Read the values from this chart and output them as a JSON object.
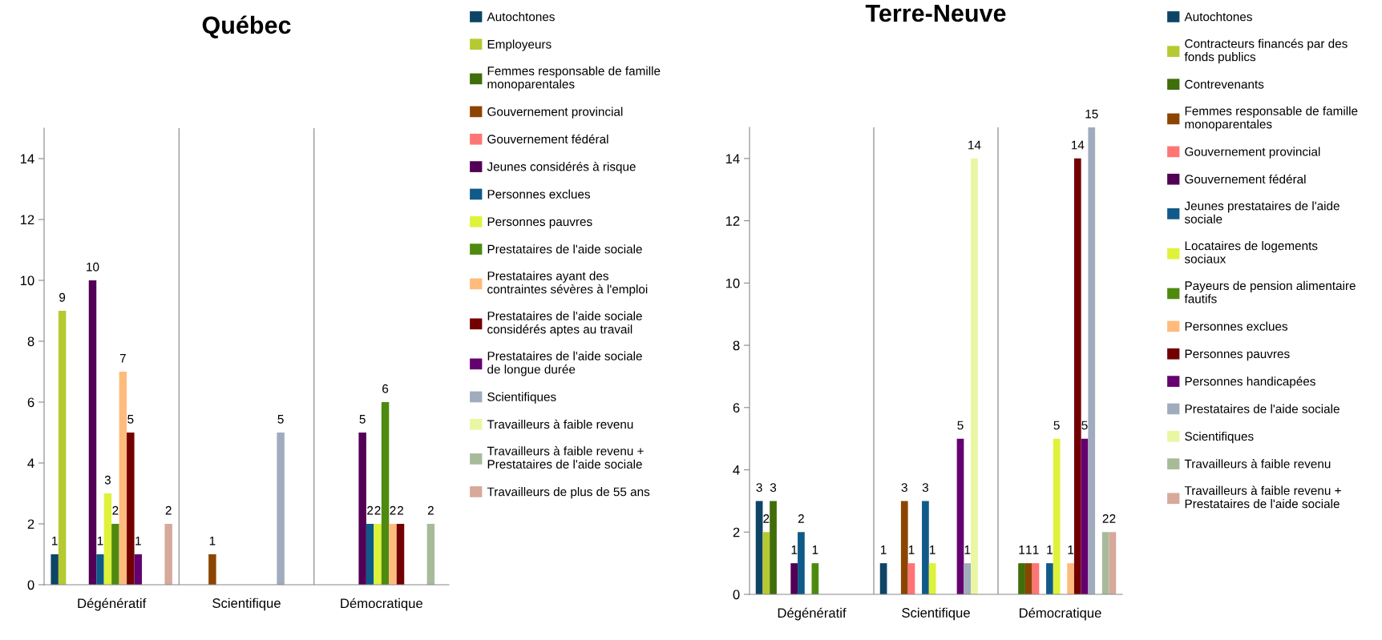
{
  "chart_data": [
    {
      "type": "bar",
      "title": "Québec",
      "categories": [
        "Dégénératif",
        "Scientifique",
        "Démocratique"
      ],
      "ylim": [
        0,
        15
      ],
      "yticks": [
        0,
        2,
        4,
        6,
        8,
        10,
        12,
        14
      ],
      "grid": "x",
      "legend": "right",
      "data_labels": true,
      "series": [
        {
          "name": "Autochtones",
          "color": "#0e4466",
          "values": [
            1,
            null,
            null
          ]
        },
        {
          "name": "Employeurs",
          "color": "#b6c931",
          "values": [
            9,
            null,
            null
          ]
        },
        {
          "name": "Femmes responsable de famille monoparentales",
          "color": "#3f6e0a",
          "values": [
            null,
            null,
            null
          ]
        },
        {
          "name": "Gouvernement provincial",
          "color": "#8b4500",
          "values": [
            null,
            1,
            null
          ]
        },
        {
          "name": "Gouvernement fédéral",
          "color": "#ff7575",
          "values": [
            null,
            null,
            null
          ]
        },
        {
          "name": "Jeunes considérés à risque",
          "color": "#520055",
          "values": [
            10,
            null,
            5
          ]
        },
        {
          "name": "Personnes exclues",
          "color": "#0f5a88",
          "values": [
            1,
            null,
            2
          ]
        },
        {
          "name": "Personnes pauvres",
          "color": "#dff23a",
          "values": [
            3,
            null,
            2
          ]
        },
        {
          "name": "Prestataires de l'aide sociale",
          "color": "#4e8a0f",
          "values": [
            2,
            null,
            6
          ]
        },
        {
          "name": "Prestataires ayant des contraintes sévères à l'emploi",
          "color": "#ffbb7c",
          "values": [
            7,
            null,
            2
          ]
        },
        {
          "name": "Prestataires de l'aide sociale considérés aptes au travail",
          "color": "#720000",
          "values": [
            5,
            null,
            2
          ]
        },
        {
          "name": "Prestataires de l'aide sociale de longue durée",
          "color": "#650070",
          "values": [
            1,
            null,
            null
          ]
        },
        {
          "name": "Scientifiques",
          "color": "#a0acbd",
          "values": [
            null,
            5,
            null
          ]
        },
        {
          "name": "Travailleurs à faible revenu",
          "color": "#e9f7a3",
          "values": [
            null,
            null,
            null
          ]
        },
        {
          "name": "Travailleurs à faible revenu + Prestataires de l'aide sociale",
          "color": "#a7bb9b",
          "values": [
            null,
            null,
            2
          ]
        },
        {
          "name": "Travailleurs de plus de 55 ans",
          "color": "#d7a99b",
          "values": [
            2,
            null,
            null
          ]
        }
      ]
    },
    {
      "type": "bar",
      "title": "Terre-Neuve",
      "categories": [
        "Dégénératif",
        "Scientifique",
        "Démocratique"
      ],
      "ylim": [
        0,
        15
      ],
      "yticks": [
        0,
        2,
        4,
        6,
        8,
        10,
        12,
        14
      ],
      "grid": "x",
      "legend": "right",
      "data_labels": true,
      "series": [
        {
          "name": "Autochtones",
          "color": "#0e4466",
          "values": [
            3,
            1,
            null
          ]
        },
        {
          "name": "Contracteurs financés par des fonds publics",
          "color": "#b6c931",
          "values": [
            2,
            null,
            null
          ]
        },
        {
          "name": "Contrevenants",
          "color": "#3f6e0a",
          "values": [
            3,
            null,
            1
          ]
        },
        {
          "name": "Femmes responsable de famille monoparentales",
          "color": "#8b4500",
          "values": [
            null,
            3,
            1
          ]
        },
        {
          "name": "Gouvernement provincial",
          "color": "#ff7575",
          "values": [
            null,
            1,
            1
          ]
        },
        {
          "name": "Gouvernement fédéral",
          "color": "#520055",
          "values": [
            1,
            null,
            null
          ]
        },
        {
          "name": "Jeunes prestataires de l'aide sociale",
          "color": "#0f5a88",
          "values": [
            2,
            3,
            1
          ]
        },
        {
          "name": "Locataires de logements sociaux",
          "color": "#dff23a",
          "values": [
            null,
            1,
            5
          ]
        },
        {
          "name": "Payeurs de pension alimentaire fautifs",
          "color": "#4e8a0f",
          "values": [
            1,
            null,
            null
          ]
        },
        {
          "name": "Personnes exclues",
          "color": "#ffbb7c",
          "values": [
            null,
            null,
            1
          ]
        },
        {
          "name": "Personnes pauvres",
          "color": "#720000",
          "values": [
            null,
            null,
            14
          ]
        },
        {
          "name": "Personnes handicapées",
          "color": "#650070",
          "values": [
            null,
            5,
            5
          ]
        },
        {
          "name": "Prestataires de l'aide sociale",
          "color": "#a0acbd",
          "values": [
            null,
            1,
            15
          ]
        },
        {
          "name": "Scientifiques",
          "color": "#e9f7a3",
          "values": [
            null,
            14,
            null
          ]
        },
        {
          "name": "Travailleurs à faible revenu",
          "color": "#a7bb9b",
          "values": [
            null,
            null,
            2
          ]
        },
        {
          "name": "Travailleurs à faible revenu + Prestataires de l'aide sociale",
          "color": "#d7a99b",
          "values": [
            null,
            null,
            2
          ]
        }
      ]
    }
  ]
}
